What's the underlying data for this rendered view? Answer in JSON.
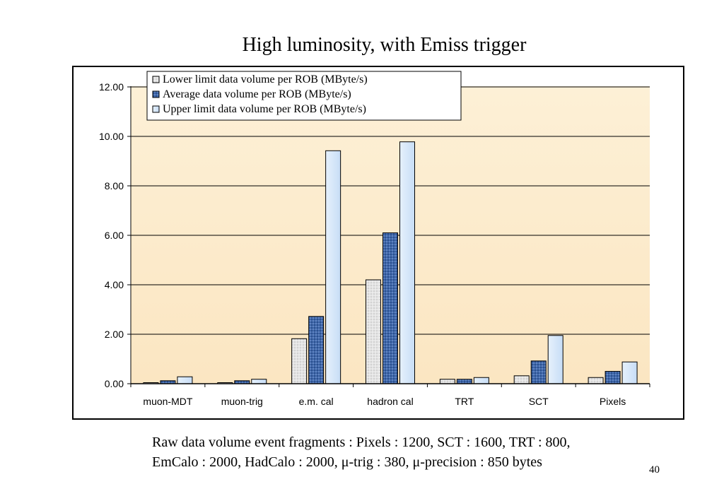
{
  "chart_data": {
    "type": "bar",
    "title": "High luminosity, with Emiss trigger",
    "categories": [
      "muon-MDT",
      "muon-trig",
      "e.m. cal",
      "hadron cal",
      "TRT",
      "SCT",
      "Pixels"
    ],
    "series": [
      {
        "name": "Lower limit data volume per ROB (MByte/s)",
        "values": [
          0.03,
          0.02,
          1.82,
          4.2,
          0.18,
          0.32,
          0.25
        ],
        "color": "#e6e6e6"
      },
      {
        "name": "Average data volume per ROB (MByte/s)",
        "values": [
          0.12,
          0.12,
          2.72,
          6.1,
          0.18,
          0.92,
          0.5
        ],
        "color": "#3e66a8"
      },
      {
        "name": "Upper limit data volume per ROB (MByte/s)",
        "values": [
          0.28,
          0.18,
          9.42,
          9.78,
          0.25,
          1.95,
          0.88
        ],
        "color": "#cfe3f8"
      }
    ],
    "ylim": [
      0,
      12
    ],
    "yticks": [
      "0.00",
      "2.00",
      "4.00",
      "6.00",
      "8.00",
      "10.00",
      "12.00"
    ],
    "grid": true,
    "legend_position": "top"
  },
  "caption": {
    "line1": "Raw data volume event fragments : Pixels :  1200, SCT : 1600, TRT : 800,",
    "line2": "EmCalo : 2000, HadCalo : 2000, μ-trig : 380, μ-precision : 850 bytes"
  },
  "page_number": "40"
}
